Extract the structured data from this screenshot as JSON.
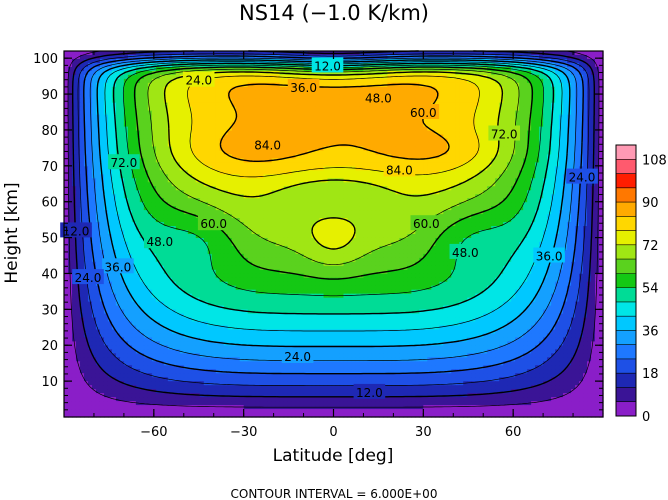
{
  "chart_data": {
    "type": "contour",
    "title": "NS14 (−1.0 K/km)",
    "xlabel": "Latitude [deg]",
    "ylabel": "Height [km]",
    "xlim": [
      -90,
      90
    ],
    "ylim": [
      0,
      102
    ],
    "x_ticks": [
      -60,
      -30,
      0,
      30,
      60
    ],
    "y_ticks": [
      10,
      20,
      30,
      40,
      50,
      60,
      70,
      80,
      90,
      100
    ],
    "footer": "CONTOUR INTERVAL = 6.000E+00",
    "contour_interval": 6,
    "colorbar": {
      "tick_labels": [
        "0",
        "18",
        "36",
        "54",
        "72",
        "90",
        "108"
      ],
      "levels": [
        0,
        6,
        12,
        18,
        24,
        30,
        36,
        42,
        48,
        54,
        60,
        66,
        72,
        78,
        84,
        90,
        96,
        102,
        108
      ],
      "colors": [
        "#8a1ec8",
        "#3a1496",
        "#1e28b4",
        "#1e50e6",
        "#1e78ff",
        "#14a0ff",
        "#00c8ff",
        "#00e6e6",
        "#00dc96",
        "#14c814",
        "#5ad21e",
        "#a0e614",
        "#e6f000",
        "#ffd700",
        "#ffaa00",
        "#ff7800",
        "#ff1e00",
        "#ff5a6e",
        "#ff9ab4"
      ]
    },
    "contour_labels": [
      {
        "text": "12.0",
        "lat": -2,
        "z": 98
      },
      {
        "text": "24.0",
        "lat": -45,
        "z": 94
      },
      {
        "text": "36.0",
        "lat": -10,
        "z": 92
      },
      {
        "text": "48.0",
        "lat": 15,
        "z": 89
      },
      {
        "text": "60.0",
        "lat": 30,
        "z": 85
      },
      {
        "text": "72.0",
        "lat": 57,
        "z": 79
      },
      {
        "text": "84.0",
        "lat": -22,
        "z": 76
      },
      {
        "text": "84.0",
        "lat": 22,
        "z": 69
      },
      {
        "text": "72.0",
        "lat": -70,
        "z": 71
      },
      {
        "text": "24.0",
        "lat": 83,
        "z": 67
      },
      {
        "text": "60.0",
        "lat": -40,
        "z": 54
      },
      {
        "text": "60.0",
        "lat": 31,
        "z": 54
      },
      {
        "text": "48.0",
        "lat": -58,
        "z": 49
      },
      {
        "text": "48.0",
        "lat": 44,
        "z": 46
      },
      {
        "text": "36.0",
        "lat": -72,
        "z": 42
      },
      {
        "text": "36.0",
        "lat": 72,
        "z": 45
      },
      {
        "text": "24.0",
        "lat": -82,
        "z": 39
      },
      {
        "text": "12.0",
        "lat": -86,
        "z": 52
      },
      {
        "text": "24.0",
        "lat": -12,
        "z": 17
      },
      {
        "text": "12.0",
        "lat": 12,
        "z": 7
      }
    ],
    "legend": "none",
    "grid": false
  }
}
